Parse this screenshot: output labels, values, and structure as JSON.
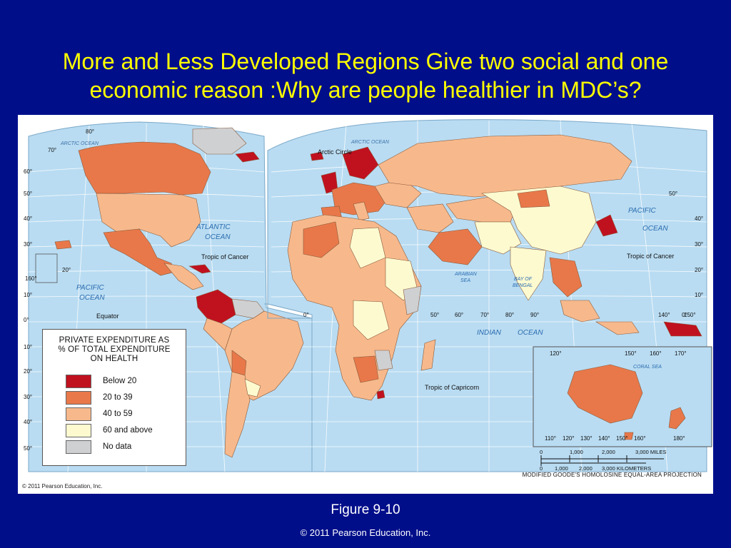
{
  "slide": {
    "title": "More and Less Developed Regions  Give two social and one economic reason :Why are people healthier in MDC’s?",
    "figure_caption": "Figure 9-10",
    "copyright": "© 2011 Pearson Education, Inc."
  },
  "map": {
    "credit": "© 2011 Pearson Education, Inc.",
    "projection": "MODIFIED GOODE'S HOMOLOSINE EQUAL-AREA PROJECTION",
    "colors": {
      "ocean": "#b9dcf2",
      "below_20": "#c0111f",
      "20_to_39": "#e8784a",
      "40_to_59": "#f7b98c",
      "60_and_above": "#fdfad0",
      "no_data": "#cfd0d2"
    },
    "legend": {
      "title_line1": "PRIVATE EXPENDITURE AS",
      "title_line2": "% OF TOTAL EXPENDITURE",
      "title_line3": "ON  HEALTH",
      "items": [
        {
          "label": "Below 20",
          "color": "#c0111f"
        },
        {
          "label": "20 to 39",
          "color": "#e8784a"
        },
        {
          "label": "40 to 59",
          "color": "#f7b98c"
        },
        {
          "label": "60 and above",
          "color": "#fdfad0"
        },
        {
          "label": "No data",
          "color": "#cfd0d2"
        }
      ]
    },
    "labels": {
      "arctic_ocean": "ARCTIC OCEAN",
      "atlantic_ocean_1": "ATLANTIC",
      "atlantic_ocean_2": "OCEAN",
      "pacific_ocean": "PACIFIC",
      "pacific_ocean_2": "OCEAN",
      "indian_ocean": "INDIAN",
      "indian_ocean_2": "OCEAN",
      "arabian_sea_1": "ARABIAN",
      "arabian_sea_2": "SEA",
      "bay_of_bengal_1": "BAY OF",
      "bay_of_bengal_2": "BENGAL",
      "coral_sea": "CORAL  SEA",
      "arctic_circle": "Arctic Circle",
      "tropic_of_cancer": "Tropic of Cancer",
      "tropic_of_capricorn": "Tropic of Capricorn",
      "equator": "Equator"
    },
    "lat_labels_left": [
      "80°",
      "70°",
      "60°",
      "50°",
      "40°",
      "30°",
      "20°",
      "10°",
      "0°",
      "10°",
      "20°",
      "30°",
      "40°",
      "50°"
    ],
    "lat_labels_right": [
      "50°",
      "40°",
      "30°",
      "20°",
      "10°",
      "0°"
    ],
    "lon_labels": [
      "160°",
      "0°",
      "50°",
      "60°",
      "70°",
      "80°",
      "90°",
      "140°",
      "150°"
    ],
    "inset_lon_top": [
      "120°",
      "150°",
      "160°",
      "170°"
    ],
    "inset_lon_bottom": [
      "110°",
      "120°",
      "130°",
      "140°",
      "150°",
      "160°",
      "180°"
    ],
    "scale": {
      "miles": [
        "0",
        "1,000",
        "2,000",
        "3,000 MILES"
      ],
      "km": [
        "0",
        "1,000",
        "2,000",
        "3,000 KILOMETERS"
      ]
    }
  }
}
